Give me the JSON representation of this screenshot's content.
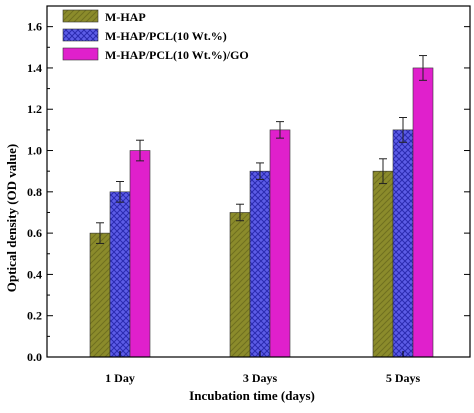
{
  "chart_data": {
    "type": "bar",
    "categories": [
      "1 Day",
      "3 Days",
      "5 Days"
    ],
    "series": [
      {
        "name": "M-HAP",
        "values": [
          0.6,
          0.7,
          0.9
        ],
        "errors": [
          0.05,
          0.04,
          0.06
        ],
        "color": "#8b8b2b",
        "pattern": "diagonal-hatch"
      },
      {
        "name": "M-HAP/PCL(10 Wt.%)",
        "values": [
          0.8,
          0.9,
          1.1
        ],
        "errors": [
          0.05,
          0.04,
          0.06
        ],
        "color": "#4f4fe0",
        "pattern": "cross-hatch"
      },
      {
        "name": "M-HAP/PCL(10 Wt.%)/GO",
        "values": [
          1.0,
          1.1,
          1.4
        ],
        "errors": [
          0.05,
          0.04,
          0.06
        ],
        "color": "#e020cc",
        "pattern": "solid"
      }
    ],
    "xlabel": "Incubation time (days)",
    "ylabel": "Optical density (OD value)",
    "ylim": [
      0,
      1.7
    ],
    "yticks": [
      "0.0",
      "0.2",
      "0.4",
      "0.6",
      "0.8",
      "1.0",
      "1.2",
      "1.4",
      "1.6"
    ],
    "legend_position": "top-left",
    "grid": false
  }
}
